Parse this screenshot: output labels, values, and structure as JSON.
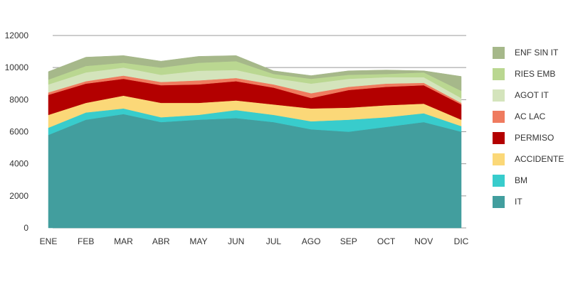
{
  "chart_data": {
    "type": "area",
    "stacked": true,
    "categories": [
      "ENE",
      "FEB",
      "MAR",
      "ABR",
      "MAY",
      "JUN",
      "JUL",
      "AGO",
      "SEP",
      "OCT",
      "NOV",
      "DIC"
    ],
    "yticks": [
      "0",
      "2000",
      "4000",
      "6000",
      "8000",
      "10000",
      "12000"
    ],
    "ylim": [
      0,
      12000
    ],
    "series": [
      {
        "name": "IT",
        "color": "#429e9e",
        "values": [
          5800,
          6750,
          7100,
          6600,
          6750,
          6850,
          6600,
          6150,
          6000,
          6300,
          6600,
          6000
        ]
      },
      {
        "name": "BM",
        "color": "#38cccc",
        "values": [
          450,
          450,
          350,
          300,
          300,
          500,
          450,
          500,
          750,
          600,
          550,
          350
        ]
      },
      {
        "name": "ACCIDENTE",
        "color": "#fbd878",
        "values": [
          800,
          600,
          800,
          900,
          750,
          600,
          650,
          800,
          750,
          750,
          600,
          400
        ]
      },
      {
        "name": "PERMISO",
        "color": "#b30000",
        "values": [
          1250,
          1200,
          1050,
          1100,
          1150,
          1200,
          1050,
          650,
          1100,
          1150,
          1150,
          950
        ]
      },
      {
        "name": "AC LAC",
        "color": "#ef7b5f",
        "values": [
          150,
          150,
          200,
          200,
          250,
          200,
          200,
          300,
          200,
          200,
          150,
          100
        ]
      },
      {
        "name": "AGOT IT",
        "color": "#d4e4bc",
        "values": [
          500,
          550,
          500,
          450,
          600,
          500,
          400,
          600,
          500,
          400,
          350,
          300
        ]
      },
      {
        "name": "RIES EMB",
        "color": "#bad791",
        "values": [
          300,
          400,
          300,
          450,
          500,
          550,
          250,
          300,
          250,
          200,
          300,
          450
        ]
      },
      {
        "name": "ENF SIN IT",
        "color": "#a6b88a",
        "values": [
          500,
          550,
          450,
          400,
          400,
          350,
          200,
          200,
          250,
          250,
          100,
          900
        ]
      }
    ],
    "legend_order": [
      "ENF SIN IT",
      "RIES EMB",
      "AGOT IT",
      "AC LAC",
      "PERMISO",
      "ACCIDENTE",
      "BM",
      "IT"
    ],
    "title": "",
    "xlabel": "",
    "ylabel": "",
    "grid": "horizontal",
    "legend": "right"
  }
}
